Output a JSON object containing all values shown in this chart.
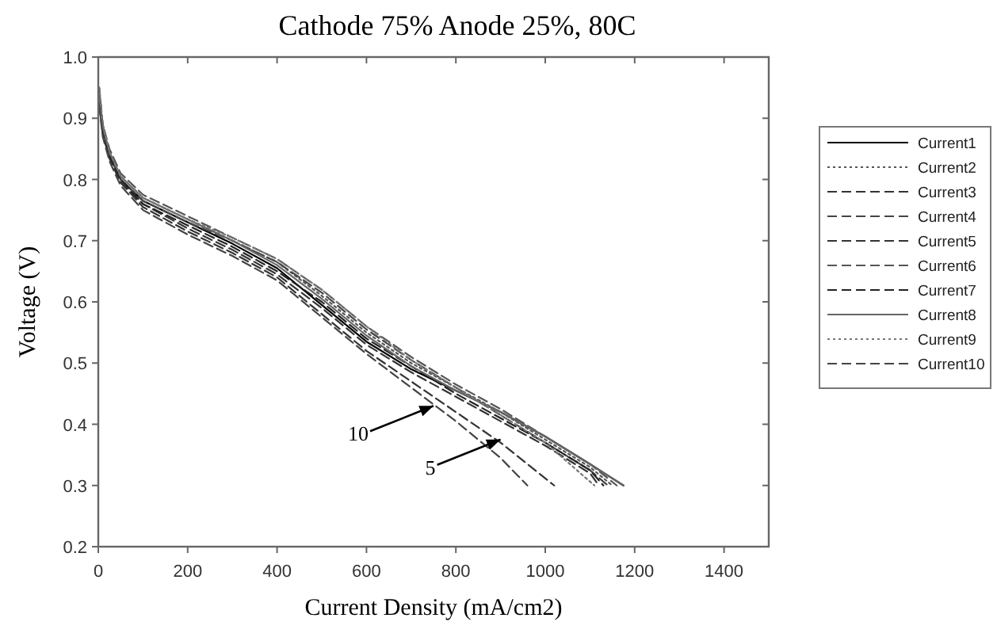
{
  "chart_data": {
    "type": "line",
    "title": "Cathode 75%  Anode 25%, 80C",
    "xlabel": "Current Density (mA/cm2)",
    "ylabel": "Voltage (V)",
    "xlim": [
      0,
      1500
    ],
    "xticks": [
      0,
      200,
      400,
      600,
      800,
      1000,
      1200,
      1400
    ],
    "ylim": [
      0.2,
      1.0
    ],
    "yticks": [
      {
        "value": 0.2,
        "label": "0.2"
      },
      0.3,
      0.4,
      0.5,
      0.6,
      0.7,
      0.8,
      0.9,
      {
        "value": 1.0,
        "label": "1.0"
      }
    ],
    "grid": false,
    "legend": "right",
    "marker": "none",
    "annotations": [
      {
        "text": "10",
        "x": 750,
        "y": 0.43
      },
      {
        "text": "5",
        "x": 900,
        "y": 0.375
      }
    ],
    "series": [
      {
        "name": "Current1",
        "color": "#000000",
        "line_style": "solid",
        "x": [
          2,
          10,
          25,
          50,
          100,
          200,
          300,
          400,
          500,
          600,
          700,
          800,
          900,
          1000,
          1100,
          1175
        ],
        "values": [
          0.94,
          0.88,
          0.84,
          0.8,
          0.765,
          0.73,
          0.695,
          0.655,
          0.595,
          0.535,
          0.49,
          0.455,
          0.42,
          0.38,
          0.335,
          0.3
        ]
      },
      {
        "name": "Current2",
        "color": "#555555",
        "line_style": "dotted",
        "x": [
          2,
          10,
          25,
          50,
          100,
          200,
          300,
          400,
          500,
          600,
          700,
          800,
          900,
          1000,
          1100,
          1150
        ],
        "values": [
          0.95,
          0.89,
          0.845,
          0.805,
          0.77,
          0.735,
          0.7,
          0.665,
          0.61,
          0.55,
          0.5,
          0.46,
          0.42,
          0.375,
          0.33,
          0.3
        ]
      },
      {
        "name": "Current3",
        "color": "#333333",
        "line_style": "dashed",
        "x": [
          2,
          10,
          25,
          50,
          100,
          200,
          300,
          400,
          500,
          600,
          700,
          800,
          900,
          1000,
          1100,
          1120
        ],
        "values": [
          0.93,
          0.875,
          0.835,
          0.795,
          0.76,
          0.72,
          0.685,
          0.645,
          0.59,
          0.53,
          0.485,
          0.445,
          0.405,
          0.365,
          0.32,
          0.3
        ]
      },
      {
        "name": "Current4",
        "color": "#444444",
        "line_style": "dashed",
        "x": [
          2,
          10,
          25,
          50,
          100,
          200,
          300,
          400,
          500,
          600,
          700,
          800,
          900,
          1000,
          1100,
          1140
        ],
        "values": [
          0.94,
          0.885,
          0.84,
          0.8,
          0.765,
          0.73,
          0.7,
          0.665,
          0.615,
          0.555,
          0.505,
          0.46,
          0.415,
          0.37,
          0.325,
          0.3
        ]
      },
      {
        "name": "Current5",
        "color": "#333333",
        "line_style": "dashed",
        "x": [
          2,
          10,
          25,
          50,
          100,
          200,
          300,
          400,
          500,
          600,
          700,
          800,
          900,
          1020
        ],
        "values": [
          0.93,
          0.875,
          0.835,
          0.795,
          0.755,
          0.715,
          0.68,
          0.64,
          0.58,
          0.52,
          0.47,
          0.42,
          0.37,
          0.3
        ]
      },
      {
        "name": "Current6",
        "color": "#555555",
        "line_style": "dashed",
        "x": [
          2,
          10,
          25,
          50,
          100,
          200,
          300,
          400,
          500,
          600,
          700,
          800,
          900,
          1000,
          1100,
          1160
        ],
        "values": [
          0.95,
          0.89,
          0.85,
          0.81,
          0.775,
          0.74,
          0.705,
          0.67,
          0.62,
          0.56,
          0.51,
          0.465,
          0.425,
          0.38,
          0.335,
          0.3
        ]
      },
      {
        "name": "Current7",
        "color": "#222222",
        "line_style": "dashed",
        "x": [
          2,
          10,
          25,
          50,
          100,
          200,
          300,
          400,
          500,
          600,
          700,
          800,
          900,
          1000,
          1100,
          1130
        ],
        "values": [
          0.93,
          0.88,
          0.84,
          0.8,
          0.76,
          0.725,
          0.69,
          0.65,
          0.6,
          0.54,
          0.495,
          0.45,
          0.41,
          0.37,
          0.325,
          0.3
        ]
      },
      {
        "name": "Current8",
        "color": "#666666",
        "line_style": "solid",
        "x": [
          2,
          10,
          25,
          50,
          100,
          200,
          300,
          400,
          500,
          600,
          700,
          800,
          900,
          1000,
          1100,
          1175
        ],
        "values": [
          0.94,
          0.885,
          0.845,
          0.805,
          0.77,
          0.735,
          0.7,
          0.66,
          0.605,
          0.545,
          0.495,
          0.455,
          0.42,
          0.38,
          0.335,
          0.3
        ]
      },
      {
        "name": "Current9",
        "color": "#777777",
        "line_style": "dotted",
        "x": [
          2,
          10,
          25,
          50,
          100,
          200,
          300,
          400,
          500,
          600,
          700,
          800,
          900,
          1000,
          1110
        ],
        "values": [
          0.95,
          0.89,
          0.845,
          0.805,
          0.77,
          0.735,
          0.705,
          0.67,
          0.62,
          0.56,
          0.505,
          0.46,
          0.415,
          0.37,
          0.3
        ]
      },
      {
        "name": "Current10",
        "color": "#444444",
        "line_style": "dashed",
        "x": [
          2,
          10,
          25,
          50,
          100,
          200,
          300,
          400,
          500,
          600,
          700,
          800,
          900,
          960
        ],
        "values": [
          0.92,
          0.87,
          0.83,
          0.79,
          0.75,
          0.71,
          0.675,
          0.635,
          0.575,
          0.515,
          0.46,
          0.405,
          0.345,
          0.3
        ]
      }
    ]
  }
}
